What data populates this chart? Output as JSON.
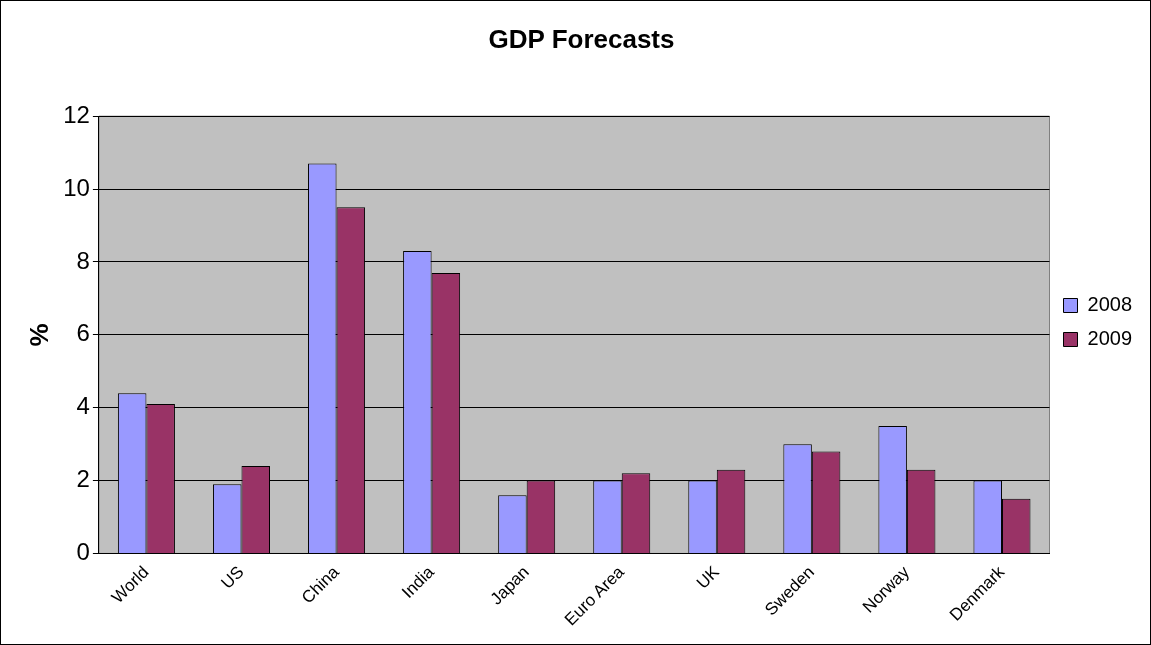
{
  "chart_data": {
    "type": "bar",
    "title": "GDP Forecasts",
    "ylabel": "%",
    "categories": [
      "World",
      "US",
      "China",
      "India",
      "Japan",
      "Euro Area",
      "UK",
      "Sweden",
      "Norway",
      "Denmark"
    ],
    "series": [
      {
        "name": "2008",
        "color": "#9999ff",
        "values": [
          4.4,
          1.9,
          10.7,
          8.3,
          1.6,
          2.0,
          2.0,
          3.0,
          3.5,
          2.0
        ]
      },
      {
        "name": "2009",
        "color": "#993366",
        "values": [
          4.1,
          2.4,
          9.5,
          7.7,
          2.0,
          2.2,
          2.3,
          2.8,
          2.3,
          1.5
        ]
      }
    ],
    "ylim": [
      0,
      12
    ],
    "yticks": [
      0,
      2,
      4,
      6,
      8,
      10,
      12
    ],
    "grid": "y",
    "legend": "right"
  }
}
